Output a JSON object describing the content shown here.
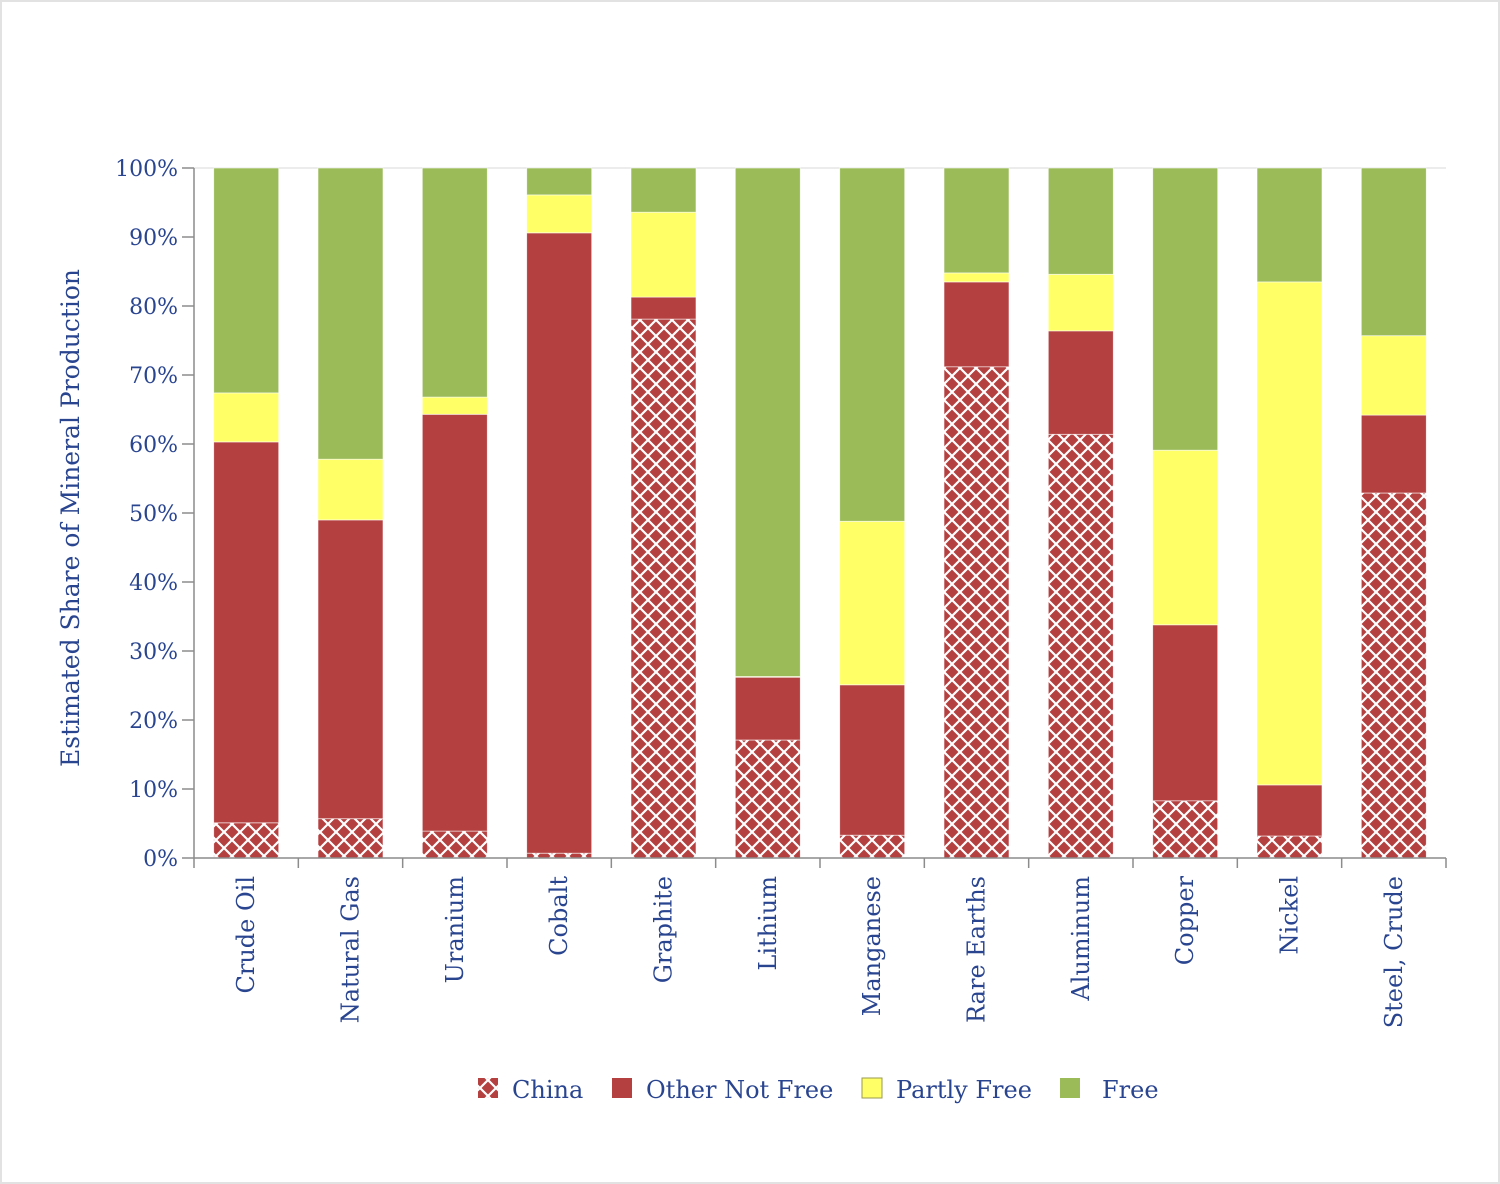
{
  "chart_data": {
    "type": "bar",
    "stacked": true,
    "title": "",
    "xlabel": "",
    "ylabel": "Estimated Share of Mineral Production",
    "ylim": [
      0,
      100
    ],
    "y_ticks": [
      "0%",
      "10%",
      "20%",
      "30%",
      "40%",
      "50%",
      "60%",
      "70%",
      "80%",
      "90%",
      "100%"
    ],
    "y_tick_values": [
      0,
      10,
      20,
      30,
      40,
      50,
      60,
      70,
      80,
      90,
      100
    ],
    "grid": false,
    "legend_position": "bottom",
    "categories": [
      "Crude Oil",
      "Natural Gas",
      "Uranium",
      "Cobalt",
      "Graphite",
      "Lithium",
      "Manganese",
      "Rare Earths",
      "Aluminum",
      "Copper",
      "Nickel",
      "Steel, Crude"
    ],
    "series": [
      {
        "name": "China",
        "color": "#b54040",
        "pattern": "crosshatch",
        "values": [
          5.1,
          5.7,
          3.9,
          0.7,
          78.1,
          17.1,
          3.3,
          71.2,
          61.4,
          8.3,
          3.2,
          52.9
        ]
      },
      {
        "name": "Other Not Free",
        "color": "#b54040",
        "pattern": "solid",
        "values": [
          55.2,
          43.3,
          60.4,
          89.9,
          3.2,
          9.1,
          21.8,
          12.3,
          15.0,
          25.5,
          7.4,
          11.3
        ]
      },
      {
        "name": "Partly Free",
        "color": "#ffff66",
        "pattern": "solid",
        "values": [
          7.1,
          8.8,
          2.5,
          5.5,
          12.3,
          0.1,
          23.7,
          1.3,
          8.2,
          25.3,
          72.9,
          11.5
        ]
      },
      {
        "name": "Free",
        "color": "#9bbb59",
        "pattern": "solid",
        "values": [
          32.6,
          42.2,
          33.2,
          3.9,
          6.4,
          73.7,
          51.2,
          15.2,
          15.4,
          40.9,
          16.5,
          24.3
        ]
      }
    ]
  }
}
